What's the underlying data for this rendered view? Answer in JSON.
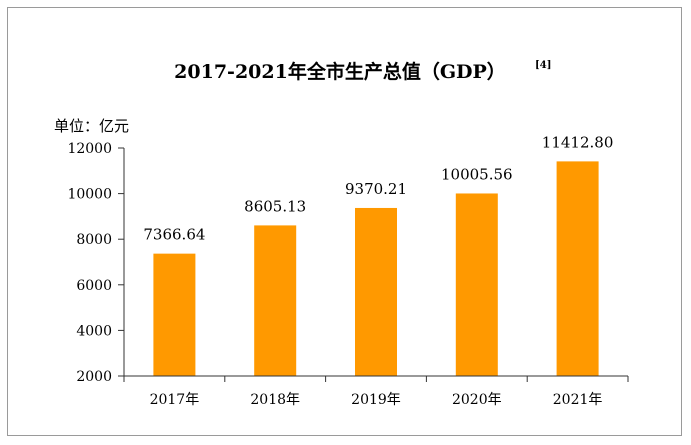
{
  "chart_data": {
    "type": "bar",
    "title": "2017-2021年全市生产总值（GDP）",
    "title_ref": "[4]",
    "unit_label": "单位：亿元",
    "categories": [
      "2017年",
      "2018年",
      "2019年",
      "2020年",
      "2021年"
    ],
    "values": [
      7366.64,
      8605.13,
      9370.21,
      10005.56,
      11412.8
    ],
    "data_labels": [
      "7366.64",
      "8605.13",
      "9370.21",
      "10005.56",
      "11412.80"
    ],
    "ylim": [
      2000,
      12000
    ],
    "yticks": [
      2000,
      4000,
      6000,
      8000,
      10000,
      12000
    ],
    "grid": false,
    "bar_color": "#ff9900"
  }
}
